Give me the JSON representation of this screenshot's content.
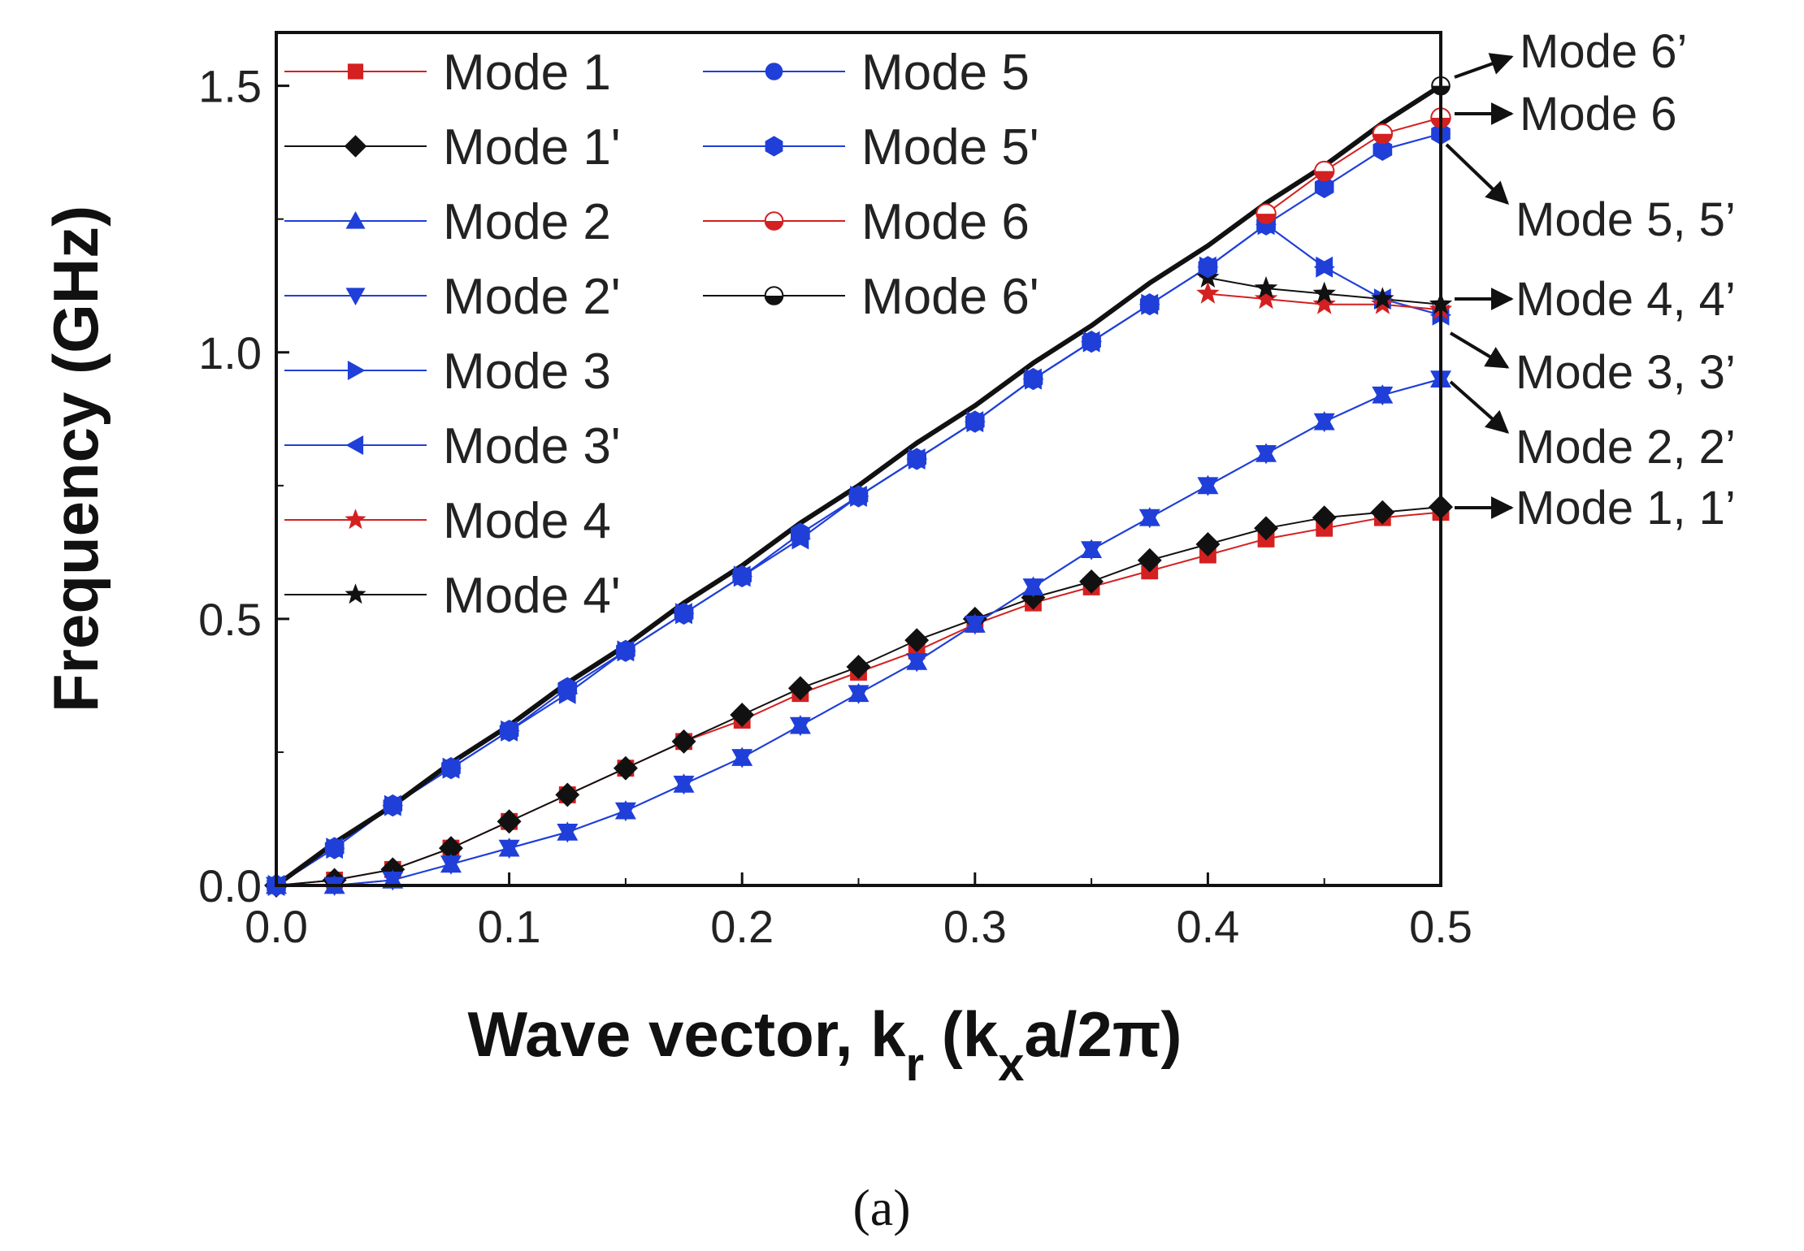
{
  "chart_data": {
    "type": "line",
    "title": "",
    "xlabel": {
      "main": "Wave vector, k",
      "sub": "r",
      "open": " (k",
      "sub2": "x",
      "tail": "a/2π)"
    },
    "ylabel": "Frequency (GHz)",
    "xlim": [
      0,
      0.5
    ],
    "ylim": [
      0,
      1.6
    ],
    "xticks": [
      "0.0",
      "0.1",
      "0.2",
      "0.3",
      "0.4",
      "0.5"
    ],
    "yticks": [
      "0.0",
      "0.5",
      "1.0",
      "1.5"
    ],
    "x": [
      0.0,
      0.025,
      0.05,
      0.075,
      0.1,
      0.125,
      0.15,
      0.175,
      0.2,
      0.225,
      0.25,
      0.275,
      0.3,
      0.325,
      0.35,
      0.375,
      0.4,
      0.425,
      0.45,
      0.475,
      0.5
    ],
    "series": [
      {
        "name": "Mode 1",
        "color": "#d42020",
        "marker": "square",
        "values": [
          0.0,
          0.01,
          0.03,
          0.07,
          0.12,
          0.17,
          0.22,
          0.27,
          0.31,
          0.36,
          0.4,
          0.44,
          0.49,
          0.53,
          0.56,
          0.59,
          0.62,
          0.65,
          0.67,
          0.69,
          0.7
        ]
      },
      {
        "name": "Mode 1'",
        "color": "#111111",
        "marker": "diamond",
        "values": [
          0.0,
          0.01,
          0.03,
          0.07,
          0.12,
          0.17,
          0.22,
          0.27,
          0.32,
          0.37,
          0.41,
          0.46,
          0.5,
          0.54,
          0.57,
          0.61,
          0.64,
          0.67,
          0.69,
          0.7,
          0.71
        ]
      },
      {
        "name": "Mode 2",
        "color": "#1f3fd8",
        "marker": "triangle-up",
        "values": [
          0.0,
          0.0,
          0.01,
          0.04,
          0.07,
          0.1,
          0.14,
          0.19,
          0.24,
          0.3,
          0.36,
          0.42,
          0.49,
          0.56,
          0.63,
          0.69,
          0.75,
          0.81,
          0.87,
          0.92,
          0.95
        ]
      },
      {
        "name": "Mode 2'",
        "color": "#1f3fd8",
        "marker": "triangle-down",
        "values": [
          0.0,
          0.0,
          0.01,
          0.04,
          0.07,
          0.1,
          0.14,
          0.19,
          0.24,
          0.3,
          0.36,
          0.42,
          0.49,
          0.56,
          0.63,
          0.69,
          0.75,
          0.81,
          0.87,
          0.92,
          0.95
        ]
      },
      {
        "name": "Mode 3",
        "color": "#1f3fd8",
        "marker": "triangle-right",
        "values": [
          0.0,
          0.07,
          0.15,
          0.22,
          0.29,
          0.36,
          0.44,
          0.51,
          0.58,
          0.65,
          0.73,
          0.8,
          0.87,
          0.95,
          1.02,
          1.09,
          1.16,
          1.24,
          1.16,
          1.1,
          1.07
        ]
      },
      {
        "name": "Mode 3'",
        "color": "#1f3fd8",
        "marker": "triangle-left",
        "values": [
          0.0,
          0.07,
          0.15,
          0.22,
          0.29,
          0.36,
          0.44,
          0.51,
          0.58,
          0.65,
          0.73,
          0.8,
          0.87,
          0.95,
          1.02,
          1.09,
          1.16,
          1.24,
          1.16,
          1.1,
          1.07
        ]
      },
      {
        "name": "Mode 4",
        "color": "#d42020",
        "marker": "star",
        "values": [
          null,
          null,
          null,
          null,
          null,
          null,
          null,
          null,
          null,
          null,
          null,
          null,
          null,
          null,
          null,
          null,
          1.11,
          1.1,
          1.09,
          1.09,
          1.08
        ]
      },
      {
        "name": "Mode 4'",
        "color": "#111111",
        "marker": "star",
        "values": [
          null,
          null,
          null,
          null,
          null,
          null,
          null,
          null,
          null,
          null,
          null,
          null,
          null,
          null,
          null,
          null,
          1.14,
          1.12,
          1.11,
          1.1,
          1.09
        ]
      },
      {
        "name": "Mode 5",
        "color": "#1f3fd8",
        "marker": "circle",
        "values": [
          0.0,
          0.07,
          0.15,
          0.22,
          0.29,
          0.37,
          0.44,
          0.51,
          0.58,
          0.66,
          0.73,
          0.8,
          0.87,
          0.95,
          1.02,
          1.09,
          1.16,
          1.24,
          1.31,
          1.38,
          1.41
        ]
      },
      {
        "name": "Mode 5'",
        "color": "#1f3fd8",
        "marker": "hexagon",
        "values": [
          0.0,
          0.07,
          0.15,
          0.22,
          0.29,
          0.37,
          0.44,
          0.51,
          0.58,
          0.66,
          0.73,
          0.8,
          0.87,
          0.95,
          1.02,
          1.09,
          1.16,
          1.24,
          1.31,
          1.38,
          1.41
        ]
      },
      {
        "name": "Mode 6",
        "color": "#d42020",
        "marker": "half-circle",
        "values": [
          null,
          null,
          null,
          null,
          null,
          null,
          null,
          null,
          null,
          null,
          null,
          null,
          null,
          null,
          null,
          null,
          null,
          1.26,
          1.34,
          1.41,
          1.44
        ]
      },
      {
        "name": "Mode 6'",
        "color": "#111111",
        "marker": "half-circle",
        "values": [
          0.0,
          0.08,
          0.15,
          0.23,
          0.3,
          0.38,
          0.45,
          0.53,
          0.6,
          0.68,
          0.75,
          0.83,
          0.9,
          0.98,
          1.05,
          1.13,
          1.2,
          1.28,
          1.35,
          1.43,
          1.5
        ]
      }
    ],
    "annotations": [
      {
        "text": "Mode 6’",
        "x": 0.5,
        "y": 1.5
      },
      {
        "text": "Mode 6",
        "x": 0.5,
        "y": 1.44
      },
      {
        "text": "Mode 5, 5’",
        "x": 0.5,
        "y": 1.41
      },
      {
        "text": "Mode 4, 4’",
        "x": 0.5,
        "y": 1.09
      },
      {
        "text": "Mode 3, 3’",
        "x": 0.5,
        "y": 1.07
      },
      {
        "text": "Mode 2, 2’",
        "x": 0.5,
        "y": 0.95
      },
      {
        "text": "Mode 1, 1’",
        "x": 0.5,
        "y": 0.71
      }
    ],
    "legend_position": "top-left, two columns",
    "grid": false
  },
  "caption": "(a)"
}
